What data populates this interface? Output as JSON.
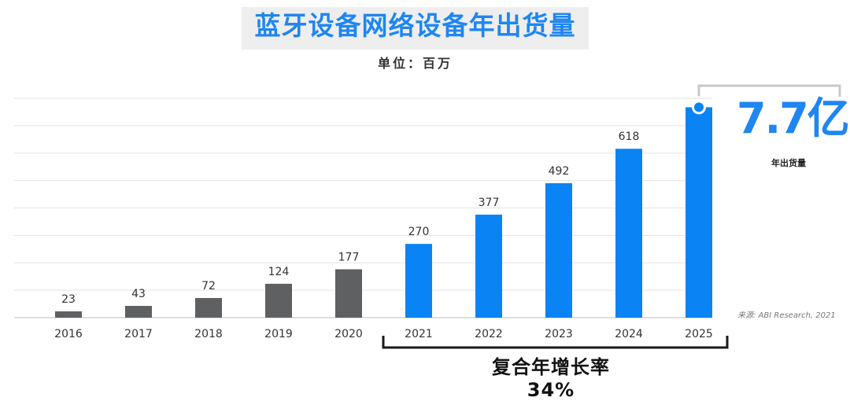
{
  "chart_data": {
    "type": "bar",
    "title": "蓝牙设备网络设备年出货量",
    "unit_label": "单位：百万",
    "categories": [
      "2016",
      "2017",
      "2018",
      "2019",
      "2020",
      "2021",
      "2022",
      "2023",
      "2024",
      "2025"
    ],
    "values": [
      23,
      43,
      72,
      124,
      177,
      270,
      377,
      492,
      618,
      770
    ],
    "value_labels": [
      "23",
      "43",
      "72",
      "124",
      "177",
      "270",
      "377",
      "492",
      "618",
      ""
    ],
    "ylim": [
      0,
      800
    ],
    "xlabel": "",
    "ylabel": "",
    "grid": true,
    "historical_color": "#5f6062",
    "forecast_color": "#0a83f5",
    "forecast_from": "2021",
    "callout": {
      "value": "7.7亿",
      "label": "年出货量"
    },
    "annotation": "复合年增长率34%",
    "source": "来源: ABI Research, 2021"
  }
}
